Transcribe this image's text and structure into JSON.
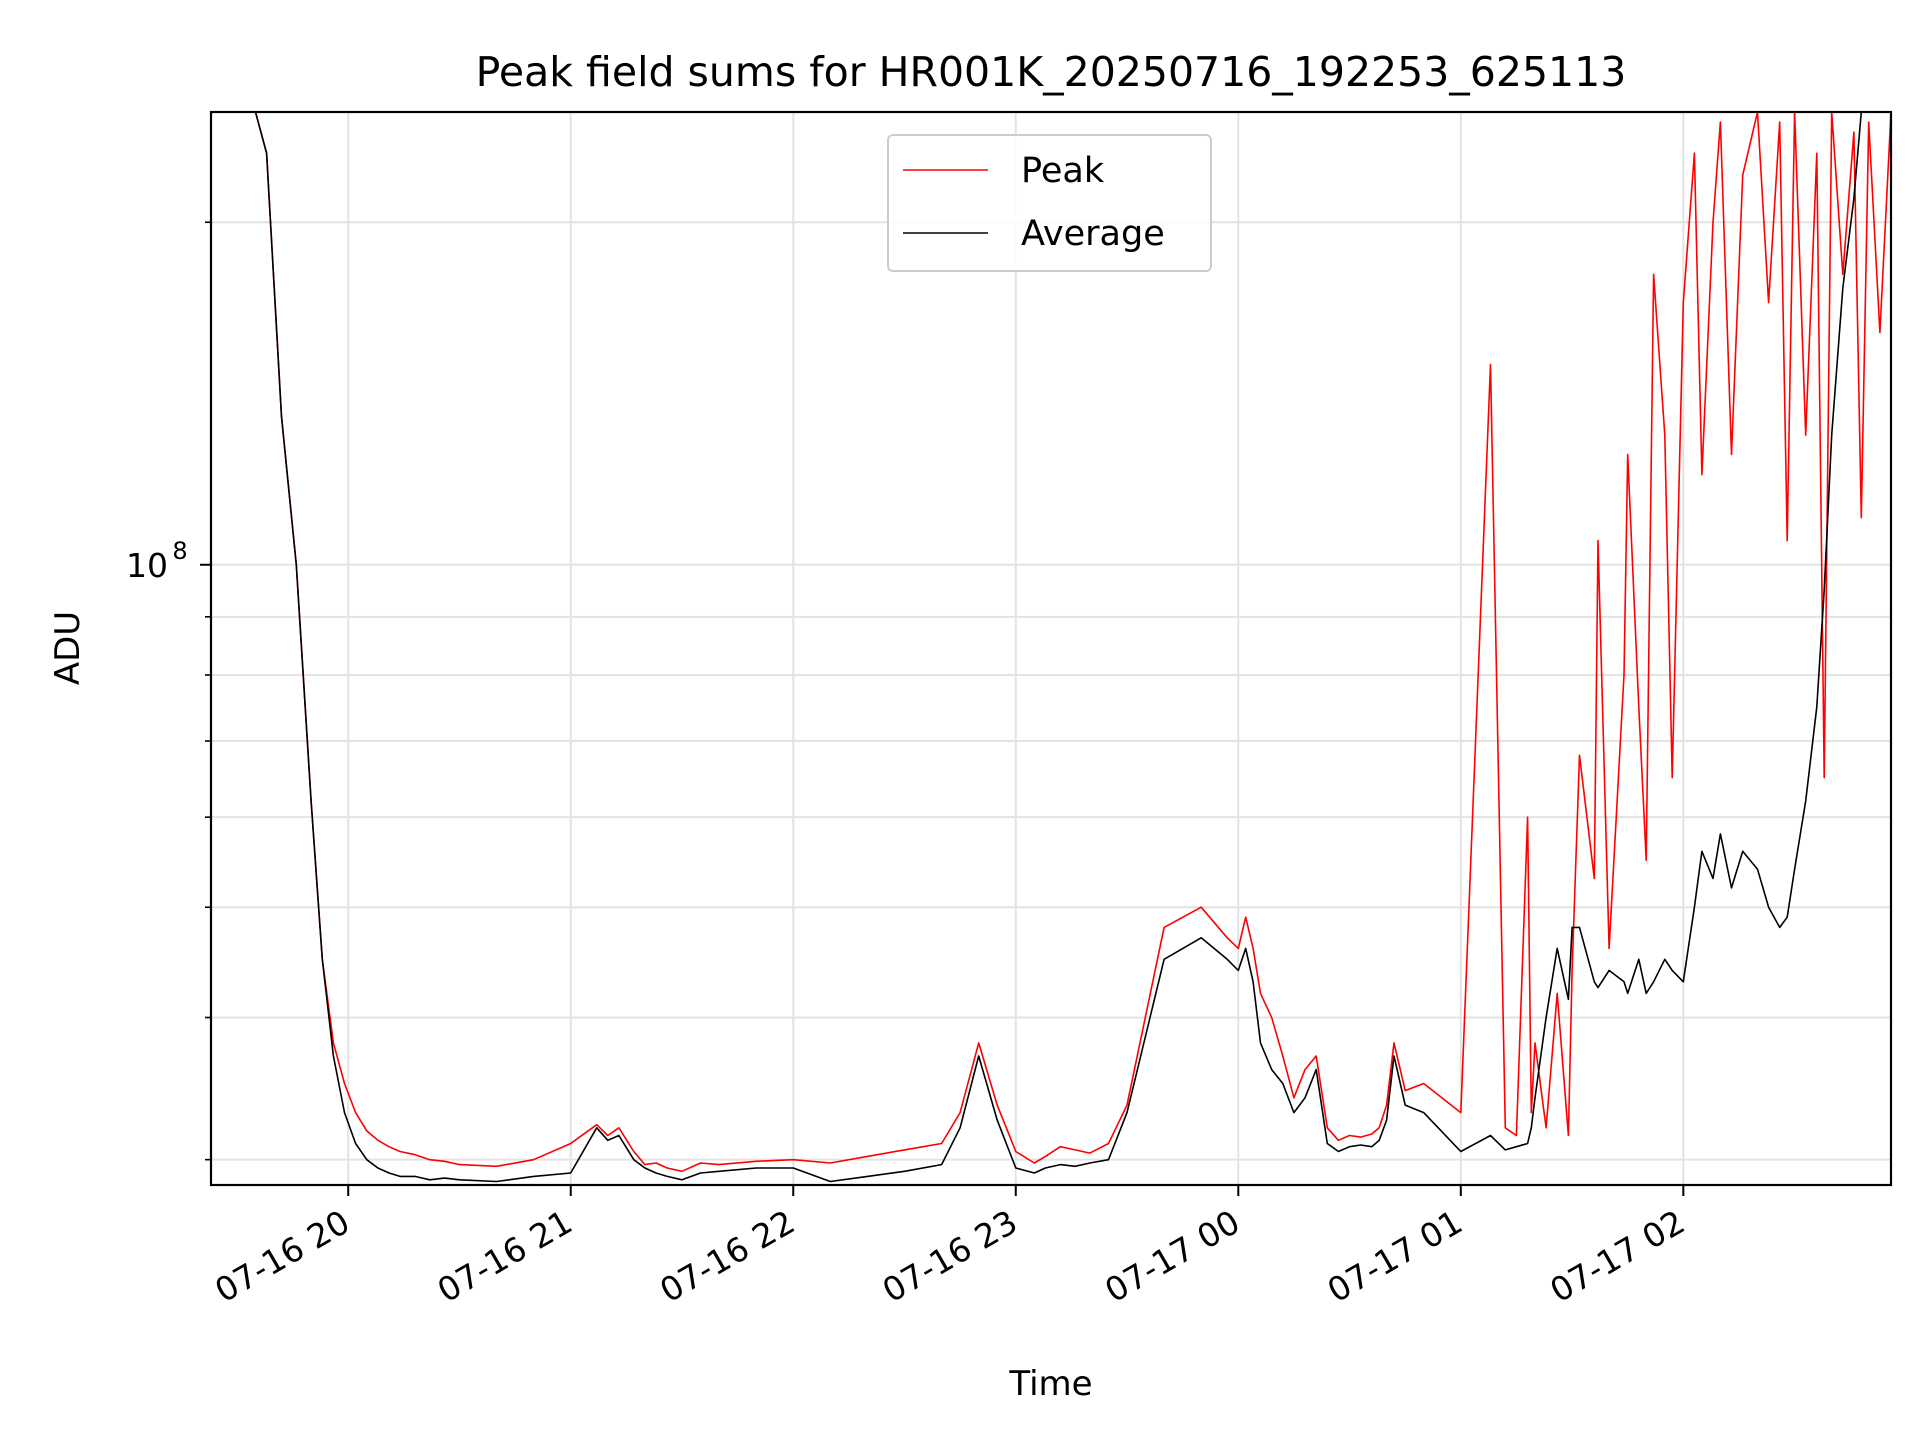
{
  "chart_data": {
    "type": "line",
    "title": "Peak field sums for HR001K_20250716_192253_625113",
    "xlabel": "Time",
    "ylabel": "ADU",
    "y_scale": "log",
    "xlim": [
      "2025-07-16 19:23",
      "2025-07-17 02:56"
    ],
    "ylim": [
      28500000.0,
      250000000.0
    ],
    "x_ticks": [
      "07-16 20",
      "07-16 21",
      "07-16 22",
      "07-16 23",
      "07-17 00",
      "07-17 01",
      "07-17 02"
    ],
    "y_ticks": [
      {
        "value": 100000000.0,
        "base": "10",
        "exponent": "8"
      }
    ],
    "grid": true,
    "legend_position": "upper center",
    "series": [
      {
        "name": "Peak",
        "color": "#ff0000",
        "x": [
          "2025-07-16 19:23",
          "2025-07-16 19:35",
          "2025-07-16 19:38",
          "2025-07-16 19:42",
          "2025-07-16 19:46",
          "2025-07-16 19:50",
          "2025-07-16 19:53",
          "2025-07-16 19:56",
          "2025-07-16 19:59",
          "2025-07-16 20:02",
          "2025-07-16 20:05",
          "2025-07-16 20:08",
          "2025-07-16 20:11",
          "2025-07-16 20:14",
          "2025-07-16 20:18",
          "2025-07-16 20:22",
          "2025-07-16 20:26",
          "2025-07-16 20:30",
          "2025-07-16 20:40",
          "2025-07-16 20:50",
          "2025-07-16 21:00",
          "2025-07-16 21:07",
          "2025-07-16 21:10",
          "2025-07-16 21:13",
          "2025-07-16 21:17",
          "2025-07-16 21:20",
          "2025-07-16 21:23",
          "2025-07-16 21:26",
          "2025-07-16 21:30",
          "2025-07-16 21:35",
          "2025-07-16 21:40",
          "2025-07-16 21:50",
          "2025-07-16 22:00",
          "2025-07-16 22:10",
          "2025-07-16 22:20",
          "2025-07-16 22:30",
          "2025-07-16 22:40",
          "2025-07-16 22:45",
          "2025-07-16 22:50",
          "2025-07-16 22:55",
          "2025-07-16 23:00",
          "2025-07-16 23:05",
          "2025-07-16 23:08",
          "2025-07-16 23:12",
          "2025-07-16 23:16",
          "2025-07-16 23:20",
          "2025-07-16 23:25",
          "2025-07-16 23:30",
          "2025-07-16 23:40",
          "2025-07-16 23:50",
          "2025-07-16 23:57",
          "2025-07-17 00:00",
          "2025-07-17 00:02",
          "2025-07-17 00:04",
          "2025-07-17 00:06",
          "2025-07-17 00:09",
          "2025-07-17 00:12",
          "2025-07-17 00:15",
          "2025-07-17 00:18",
          "2025-07-17 00:21",
          "2025-07-17 00:24",
          "2025-07-17 00:27",
          "2025-07-17 00:30",
          "2025-07-17 00:33",
          "2025-07-17 00:36",
          "2025-07-17 00:38",
          "2025-07-17 00:40",
          "2025-07-17 00:42",
          "2025-07-17 00:45",
          "2025-07-17 00:50",
          "2025-07-17 01:00",
          "2025-07-17 01:08",
          "2025-07-17 01:12",
          "2025-07-17 01:15",
          "2025-07-17 01:18",
          "2025-07-17 01:19",
          "2025-07-17 01:20",
          "2025-07-17 01:23",
          "2025-07-17 01:26",
          "2025-07-17 01:29",
          "2025-07-17 01:30",
          "2025-07-17 01:32",
          "2025-07-17 01:36",
          "2025-07-17 01:37",
          "2025-07-17 01:40",
          "2025-07-17 01:44",
          "2025-07-17 01:45",
          "2025-07-17 01:48",
          "2025-07-17 01:50",
          "2025-07-17 01:52",
          "2025-07-17 01:55",
          "2025-07-17 01:57",
          "2025-07-17 02:00",
          "2025-07-17 02:03",
          "2025-07-17 02:05",
          "2025-07-17 02:08",
          "2025-07-17 02:10",
          "2025-07-17 02:13",
          "2025-07-17 02:16",
          "2025-07-17 02:20",
          "2025-07-17 02:23",
          "2025-07-17 02:26",
          "2025-07-17 02:28",
          "2025-07-17 02:30",
          "2025-07-17 02:33",
          "2025-07-17 02:36",
          "2025-07-17 02:38",
          "2025-07-17 02:40",
          "2025-07-17 02:43",
          "2025-07-17 02:46",
          "2025-07-17 02:48",
          "2025-07-17 02:50",
          "2025-07-17 02:53",
          "2025-07-17 02:56"
        ],
        "y": [
          250000000.0,
          250000000.0,
          230000000.0,
          135000000.0,
          100000000.0,
          62000000.0,
          45000000.0,
          38000000.0,
          35000000.0,
          33000000.0,
          31800000.0,
          31200000.0,
          30800000.0,
          30500000.0,
          30300000.0,
          30000000.0,
          29900000.0,
          29700000.0,
          29600000.0,
          30000000.0,
          31000000.0,
          32200000.0,
          31500000.0,
          32000000.0,
          30500000.0,
          29700000.0,
          29800000.0,
          29500000.0,
          29300000.0,
          29800000.0,
          29700000.0,
          29900000.0,
          30000000.0,
          29800000.0,
          30200000.0,
          30600000.0,
          31000000.0,
          33000000.0,
          38000000.0,
          33500000.0,
          30500000.0,
          29800000.0,
          30200000.0,
          30800000.0,
          30600000.0,
          30400000.0,
          31000000.0,
          33500000.0,
          48000000.0,
          50000000.0,
          47000000.0,
          46000000.0,
          49000000.0,
          46000000.0,
          42000000.0,
          40000000.0,
          37000000.0,
          34000000.0,
          36000000.0,
          37000000.0,
          32000000.0,
          31200000.0,
          31500000.0,
          31400000.0,
          31600000.0,
          32000000.0,
          33500000.0,
          38000000.0,
          34500000.0,
          35000000.0,
          33000000.0,
          150000000.0,
          32000000.0,
          31500000.0,
          60000000.0,
          33000000.0,
          38000000.0,
          32000000.0,
          42000000.0,
          31500000.0,
          44000000.0,
          68000000.0,
          53000000.0,
          105000000.0,
          46000000.0,
          80000000.0,
          125000000.0,
          75000000.0,
          55000000.0,
          180000000.0,
          130000000.0,
          65000000.0,
          170000000.0,
          230000000.0,
          120000000.0,
          200000000.0,
          245000000.0,
          125000000.0,
          220000000.0,
          250000000.0,
          170000000.0,
          245000000.0,
          105000000.0,
          250000000.0,
          130000000.0,
          230000000.0,
          65000000.0,
          250000000.0,
          180000000.0,
          240000000.0,
          110000000.0,
          245000000.0,
          160000000.0,
          250000000.0
        ]
      },
      {
        "name": "Average",
        "color": "#000000",
        "x": [
          "2025-07-16 19:23",
          "2025-07-16 19:35",
          "2025-07-16 19:38",
          "2025-07-16 19:42",
          "2025-07-16 19:46",
          "2025-07-16 19:50",
          "2025-07-16 19:53",
          "2025-07-16 19:56",
          "2025-07-16 19:59",
          "2025-07-16 20:02",
          "2025-07-16 20:05",
          "2025-07-16 20:08",
          "2025-07-16 20:11",
          "2025-07-16 20:14",
          "2025-07-16 20:18",
          "2025-07-16 20:22",
          "2025-07-16 20:26",
          "2025-07-16 20:30",
          "2025-07-16 20:40",
          "2025-07-16 20:50",
          "2025-07-16 21:00",
          "2025-07-16 21:07",
          "2025-07-16 21:10",
          "2025-07-16 21:13",
          "2025-07-16 21:17",
          "2025-07-16 21:20",
          "2025-07-16 21:23",
          "2025-07-16 21:26",
          "2025-07-16 21:30",
          "2025-07-16 21:35",
          "2025-07-16 21:40",
          "2025-07-16 21:50",
          "2025-07-16 22:00",
          "2025-07-16 22:10",
          "2025-07-16 22:20",
          "2025-07-16 22:30",
          "2025-07-16 22:40",
          "2025-07-16 22:45",
          "2025-07-16 22:50",
          "2025-07-16 22:55",
          "2025-07-16 23:00",
          "2025-07-16 23:05",
          "2025-07-16 23:08",
          "2025-07-16 23:12",
          "2025-07-16 23:16",
          "2025-07-16 23:20",
          "2025-07-16 23:25",
          "2025-07-16 23:30",
          "2025-07-16 23:40",
          "2025-07-16 23:50",
          "2025-07-16 23:57",
          "2025-07-17 00:00",
          "2025-07-17 00:02",
          "2025-07-17 00:04",
          "2025-07-17 00:06",
          "2025-07-17 00:09",
          "2025-07-17 00:12",
          "2025-07-17 00:15",
          "2025-07-17 00:18",
          "2025-07-17 00:21",
          "2025-07-17 00:24",
          "2025-07-17 00:27",
          "2025-07-17 00:30",
          "2025-07-17 00:33",
          "2025-07-17 00:36",
          "2025-07-17 00:38",
          "2025-07-17 00:40",
          "2025-07-17 00:42",
          "2025-07-17 00:45",
          "2025-07-17 00:50",
          "2025-07-17 01:00",
          "2025-07-17 01:08",
          "2025-07-17 01:12",
          "2025-07-17 01:15",
          "2025-07-17 01:18",
          "2025-07-17 01:19",
          "2025-07-17 01:20",
          "2025-07-17 01:23",
          "2025-07-17 01:26",
          "2025-07-17 01:29",
          "2025-07-17 01:30",
          "2025-07-17 01:32",
          "2025-07-17 01:36",
          "2025-07-17 01:37",
          "2025-07-17 01:40",
          "2025-07-17 01:44",
          "2025-07-17 01:45",
          "2025-07-17 01:48",
          "2025-07-17 01:50",
          "2025-07-17 01:52",
          "2025-07-17 01:55",
          "2025-07-17 01:57",
          "2025-07-17 02:00",
          "2025-07-17 02:03",
          "2025-07-17 02:05",
          "2025-07-17 02:08",
          "2025-07-17 02:10",
          "2025-07-17 02:13",
          "2025-07-17 02:16",
          "2025-07-17 02:20",
          "2025-07-17 02:23",
          "2025-07-17 02:26",
          "2025-07-17 02:28",
          "2025-07-17 02:30",
          "2025-07-17 02:33",
          "2025-07-17 02:36",
          "2025-07-17 02:38",
          "2025-07-17 02:40",
          "2025-07-17 02:43",
          "2025-07-17 02:46",
          "2025-07-17 02:48",
          "2025-07-17 02:50",
          "2025-07-17 02:53",
          "2025-07-17 02:56"
        ],
        "y": [
          250000000.0,
          250000000.0,
          230000000.0,
          135000000.0,
          100000000.0,
          62000000.0,
          45000000.0,
          37000000.0,
          33000000.0,
          31000000.0,
          30000000.0,
          29500000.0,
          29200000.0,
          29000000.0,
          29000000.0,
          28800000.0,
          28900000.0,
          28800000.0,
          28700000.0,
          29000000.0,
          29200000.0,
          32000000.0,
          31200000.0,
          31500000.0,
          30000000.0,
          29500000.0,
          29200000.0,
          29000000.0,
          28800000.0,
          29200000.0,
          29300000.0,
          29500000.0,
          29500000.0,
          28700000.0,
          29000000.0,
          29300000.0,
          29700000.0,
          32000000.0,
          37000000.0,
          32500000.0,
          29500000.0,
          29200000.0,
          29500000.0,
          29700000.0,
          29600000.0,
          29800000.0,
          30000000.0,
          33000000.0,
          45000000.0,
          47000000.0,
          45000000.0,
          44000000.0,
          46000000.0,
          43000000.0,
          38000000.0,
          36000000.0,
          35000000.0,
          33000000.0,
          34000000.0,
          36000000.0,
          31000000.0,
          30500000.0,
          30800000.0,
          30900000.0,
          30800000.0,
          31200000.0,
          32500000.0,
          37000000.0,
          33500000.0,
          33000000.0,
          30500000.0,
          31500000.0,
          30600000.0,
          30800000.0,
          31000000.0,
          32000000.0,
          34000000.0,
          40000000.0,
          46000000.0,
          41500000.0,
          48000000.0,
          48000000.0,
          43000000.0,
          42500000.0,
          44000000.0,
          43000000.0,
          42000000.0,
          45000000.0,
          42000000.0,
          43000000.0,
          45000000.0,
          44000000.0,
          43000000.0,
          50000000.0,
          56000000.0,
          53000000.0,
          58000000.0,
          52000000.0,
          56000000.0,
          54000000.0,
          50000000.0,
          48000000.0,
          49000000.0,
          54000000.0,
          62000000.0,
          75000000.0,
          95000000.0,
          130000000.0,
          175000000.0,
          210000000.0,
          250000000.0,
          250000000.0,
          250000000.0,
          250000000.0
        ]
      }
    ]
  }
}
